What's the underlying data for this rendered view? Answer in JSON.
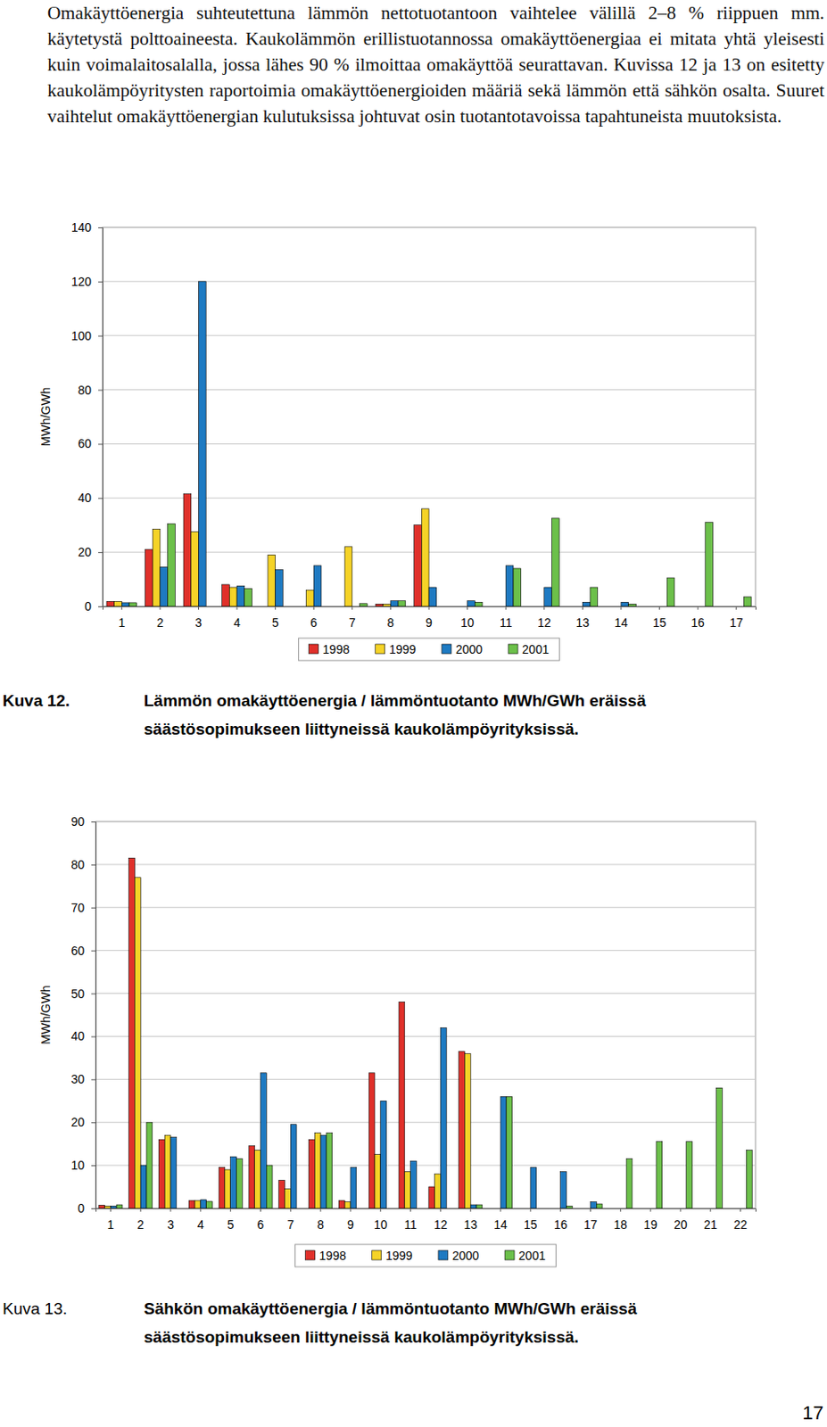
{
  "document": {
    "paragraph": "Omakäyttöenergia suhteutettuna lämmön nettotuotantoon vaihtelee välillä 2–8 % riippuen mm. käytetystä polttoaineesta. Kaukolämmön erillistuotannossa omakäyttöenergiaa ei mitata yhtä yleisesti kuin voimalaitosalalla, jossa lähes 90 % ilmoittaa omakäyttöä seurattavan. Kuvissa 12 ja 13 on esitetty kaukolämpöyritysten raportoimia omakäyttöenergioiden määriä sekä lämmön että sähkön osalta. Suuret vaihtelut omakäyttöenergian kulutuksissa johtuvat osin tuotantotavoissa tapahtuneista muutoksista.",
    "captions": [
      {
        "label": "Kuva 12.",
        "text": "Lämmön omakäyttöenergia / lämmöntuotanto MWh/GWh eräissä säästösopimukseen liittyneissä kaukolämpöyrityksissä."
      },
      {
        "label": "Kuva 13.",
        "text": "Sähkön omakäyttöenergia / lämmöntuotanto MWh/GWh eräissä säästösopimukseen liittyneissä kaukolämpöyrityksissä."
      }
    ],
    "page_number": "17"
  },
  "chart_data": [
    {
      "type": "bar",
      "y_label": "MWh/GWh",
      "categories": [
        "1",
        "2",
        "3",
        "4",
        "5",
        "6",
        "7",
        "8",
        "9",
        "10",
        "11",
        "12",
        "13",
        "14",
        "15",
        "16",
        "17"
      ],
      "series": [
        {
          "name": "1998",
          "color": "#e0302a",
          "values": [
            1.8,
            21,
            41.5,
            8,
            null,
            null,
            null,
            0.8,
            30,
            null,
            null,
            null,
            null,
            null,
            null,
            null,
            null
          ]
        },
        {
          "name": "1999",
          "color": "#f5d327",
          "values": [
            1.8,
            28.5,
            27.5,
            7,
            19,
            6,
            22,
            0.8,
            36,
            null,
            null,
            null,
            null,
            null,
            null,
            null,
            null
          ]
        },
        {
          "name": "2000",
          "color": "#1e7ac2",
          "values": [
            1.3,
            14.5,
            120,
            7.5,
            13.5,
            15,
            null,
            2,
            7,
            2,
            15,
            7,
            1.5,
            1.5,
            null,
            null,
            null
          ]
        },
        {
          "name": "2001",
          "color": "#6cc04a",
          "values": [
            1.3,
            30.5,
            null,
            6.5,
            null,
            null,
            1,
            2,
            null,
            1.5,
            14,
            32.5,
            7,
            0.8,
            10.5,
            31,
            3.5
          ]
        }
      ],
      "ylim": [
        0,
        140
      ],
      "yticks": [
        0,
        20,
        40,
        60,
        80,
        100,
        120,
        140
      ],
      "grid": true,
      "legend": "bottom"
    },
    {
      "type": "bar",
      "y_label": "MWh/GWh",
      "categories": [
        "1",
        "2",
        "3",
        "4",
        "5",
        "6",
        "7",
        "8",
        "9",
        "10",
        "11",
        "12",
        "13",
        "14",
        "15",
        "16",
        "17",
        "18",
        "19",
        "20",
        "21",
        "22"
      ],
      "series": [
        {
          "name": "1998",
          "color": "#e0302a",
          "values": [
            0.7,
            81.5,
            16,
            1.8,
            9.5,
            14.5,
            6.5,
            16,
            1.8,
            31.5,
            48,
            5,
            36.5,
            null,
            null,
            null,
            null,
            null,
            null,
            null,
            null,
            null
          ]
        },
        {
          "name": "1999",
          "color": "#f5d327",
          "values": [
            0.5,
            77,
            17,
            1.8,
            9,
            13.5,
            4.5,
            17.5,
            1.5,
            12.5,
            8.5,
            8,
            36,
            null,
            null,
            null,
            null,
            null,
            null,
            null,
            null,
            null
          ]
        },
        {
          "name": "2000",
          "color": "#1e7ac2",
          "values": [
            0.5,
            10,
            16.5,
            2,
            12,
            31.5,
            19.5,
            17,
            9.5,
            25,
            11,
            42,
            0.8,
            26,
            9.5,
            8.5,
            1.5,
            null,
            null,
            null,
            null,
            null
          ]
        },
        {
          "name": "2001",
          "color": "#6cc04a",
          "values": [
            0.8,
            20,
            null,
            1.6,
            11.5,
            10,
            null,
            17.5,
            null,
            null,
            null,
            null,
            0.8,
            26,
            null,
            0.5,
            1,
            11.5,
            15.5,
            15.5,
            28,
            13.5
          ]
        }
      ],
      "ylim": [
        0,
        90
      ],
      "yticks": [
        0,
        10,
        20,
        30,
        40,
        50,
        60,
        70,
        80,
        90
      ],
      "grid": true,
      "legend": "bottom"
    }
  ]
}
